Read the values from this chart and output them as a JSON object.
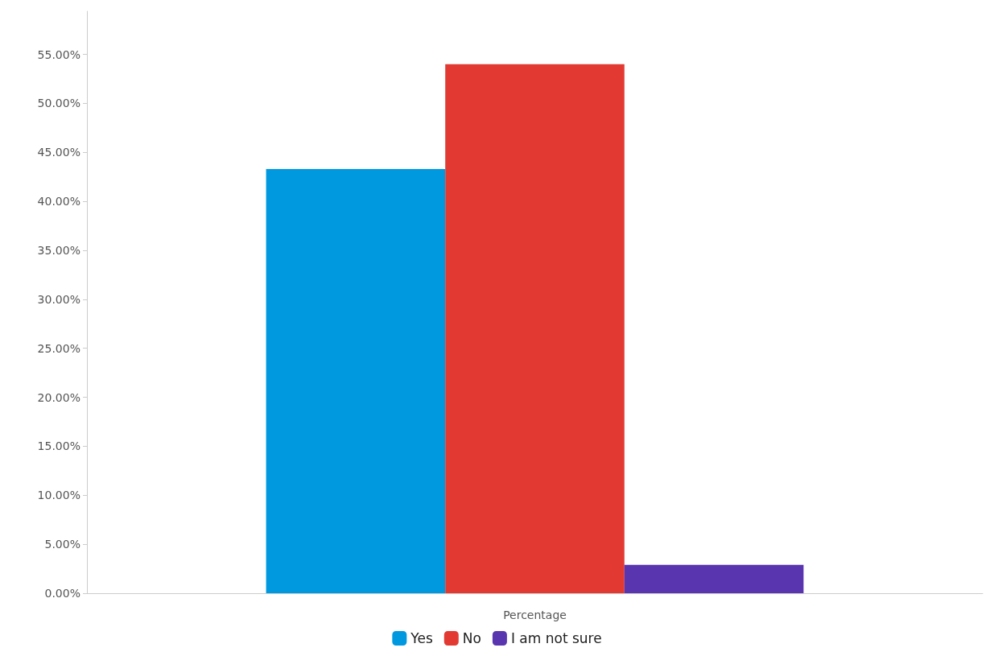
{
  "chart_data": {
    "type": "bar",
    "xlabel": null,
    "categories": [
      "Percentage"
    ],
    "series": [
      {
        "name": "Yes",
        "color": "#0099e0",
        "values": [
          43.3
        ]
      },
      {
        "name": "No",
        "color": "#e23a33",
        "values": [
          54.0
        ]
      },
      {
        "name": "I am not sure",
        "color": "#5a35b0",
        "values": [
          2.9
        ]
      }
    ],
    "ylim": [
      0,
      59.4
    ],
    "yticks": [
      {
        "value": 0,
        "label": "0.00%"
      },
      {
        "value": 5,
        "label": "5.00%"
      },
      {
        "value": 10,
        "label": "10.00%"
      },
      {
        "value": 15,
        "label": "15.00%"
      },
      {
        "value": 20,
        "label": "20.00%"
      },
      {
        "value": 25,
        "label": "25.00%"
      },
      {
        "value": 30,
        "label": "30.00%"
      },
      {
        "value": 35,
        "label": "35.00%"
      },
      {
        "value": 40,
        "label": "40.00%"
      },
      {
        "value": 45,
        "label": "45.00%"
      },
      {
        "value": 50,
        "label": "50.00%"
      },
      {
        "value": 55,
        "label": "55.00%"
      }
    ],
    "grid": false,
    "legend": "bottom"
  }
}
